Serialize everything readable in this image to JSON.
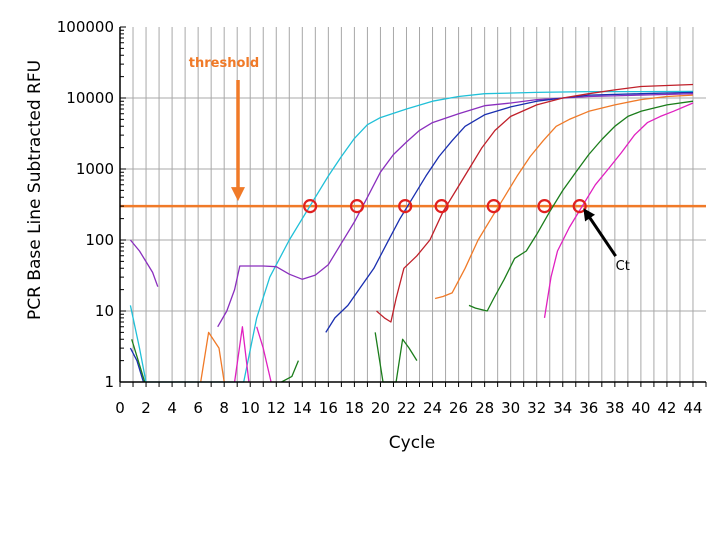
{
  "chart_data": {
    "type": "line",
    "title": "",
    "xlabel": "Cycle",
    "ylabel": "PCR Base Line Subtracted RFU",
    "xlim": [
      0,
      45
    ],
    "ylim": [
      1,
      100000
    ],
    "yscale": "log",
    "grid": true,
    "x_ticks": [
      "0",
      "2",
      "4",
      "6",
      "8",
      "10",
      "12",
      "14",
      "16",
      "18",
      "20",
      "22",
      "24",
      "26",
      "28",
      "30",
      "32",
      "34",
      "36",
      "38",
      "40",
      "42",
      "44"
    ],
    "y_ticks": [
      "1",
      "10",
      "100",
      "1000",
      "10000",
      "100000"
    ],
    "threshold": {
      "label": "threshold",
      "value": 300,
      "color": "#f07a28"
    },
    "ct_annotation": {
      "label": "Ct",
      "x": 35.3,
      "y": 300
    },
    "ct_markers": [
      {
        "x": 14.6,
        "y": 300
      },
      {
        "x": 18.2,
        "y": 300
      },
      {
        "x": 21.9,
        "y": 300
      },
      {
        "x": 24.7,
        "y": 300
      },
      {
        "x": 28.7,
        "y": 300
      },
      {
        "x": 32.6,
        "y": 300
      },
      {
        "x": 35.3,
        "y": 300
      }
    ],
    "series": [
      {
        "color": "#20c0d8",
        "points": [
          [
            0.8,
            12
          ],
          [
            1.5,
            3
          ],
          [
            2,
            1
          ],
          [
            9.5,
            1
          ],
          [
            10.5,
            8
          ],
          [
            11.5,
            30
          ],
          [
            13,
            100
          ],
          [
            14,
            200
          ],
          [
            15,
            400
          ],
          [
            16,
            800
          ],
          [
            17,
            1500
          ],
          [
            18,
            2700
          ],
          [
            19,
            4200
          ],
          [
            20,
            5300
          ],
          [
            22,
            7000
          ],
          [
            24,
            9000
          ],
          [
            26,
            10500
          ],
          [
            28,
            11500
          ],
          [
            32,
            12000
          ],
          [
            36,
            12300
          ],
          [
            40,
            12300
          ],
          [
            44,
            12400
          ]
        ]
      },
      {
        "color": "#8a2fbe",
        "points": [
          [
            7.5,
            6
          ],
          [
            8.2,
            10
          ],
          [
            8.8,
            20
          ],
          [
            9.2,
            43
          ],
          [
            10,
            43
          ],
          [
            11,
            43
          ],
          [
            12,
            42
          ],
          [
            13,
            33
          ],
          [
            14,
            28
          ],
          [
            15,
            32
          ],
          [
            16,
            45
          ],
          [
            17,
            90
          ],
          [
            18,
            180
          ],
          [
            19,
            400
          ],
          [
            20,
            900
          ],
          [
            21,
            1600
          ],
          [
            22,
            2400
          ],
          [
            23,
            3500
          ],
          [
            24,
            4500
          ],
          [
            26,
            6000
          ],
          [
            28,
            7800
          ],
          [
            30,
            8500
          ],
          [
            32,
            9500
          ],
          [
            36,
            10500
          ],
          [
            40,
            11000
          ],
          [
            44,
            11500
          ]
        ]
      },
      {
        "color": "#8a2fbe",
        "points": [
          [
            0.8,
            100
          ],
          [
            1.5,
            70
          ],
          [
            2.5,
            35
          ],
          [
            2.9,
            22
          ]
        ]
      },
      {
        "color": "#1a2fb0",
        "points": [
          [
            15.8,
            5
          ],
          [
            16.5,
            8
          ],
          [
            17.5,
            12
          ],
          [
            18.5,
            22
          ],
          [
            19.5,
            40
          ],
          [
            20.5,
            90
          ],
          [
            21.5,
            200
          ],
          [
            22.5,
            400
          ],
          [
            23.5,
            800
          ],
          [
            24.5,
            1500
          ],
          [
            25.5,
            2500
          ],
          [
            26.5,
            4000
          ],
          [
            28,
            5800
          ],
          [
            30,
            7500
          ],
          [
            32,
            9000
          ],
          [
            34,
            10000
          ],
          [
            36,
            11000
          ],
          [
            40,
            11500
          ],
          [
            44,
            12000
          ]
        ]
      },
      {
        "color": "#1a2fb0",
        "points": [
          [
            0.8,
            3
          ],
          [
            1.3,
            2
          ],
          [
            1.8,
            1
          ]
        ]
      },
      {
        "color": "#c0202a",
        "points": [
          [
            19.7,
            10
          ],
          [
            20.3,
            8
          ],
          [
            20.8,
            7
          ],
          [
            21.2,
            15
          ],
          [
            21.8,
            40
          ],
          [
            22.8,
            60
          ],
          [
            23.8,
            100
          ],
          [
            24.8,
            250
          ],
          [
            25.8,
            500
          ],
          [
            26.8,
            1000
          ],
          [
            27.8,
            2000
          ],
          [
            28.8,
            3500
          ],
          [
            30,
            5500
          ],
          [
            32,
            8000
          ],
          [
            34,
            10000
          ],
          [
            36,
            11500
          ],
          [
            38,
            13000
          ],
          [
            40,
            14500
          ],
          [
            44,
            15500
          ]
        ]
      },
      {
        "color": "#f07a28",
        "points": [
          [
            6.2,
            1
          ],
          [
            6.8,
            5
          ],
          [
            7.6,
            3
          ],
          [
            8,
            1
          ]
        ]
      },
      {
        "color": "#f07a28",
        "points": [
          [
            24.2,
            15
          ],
          [
            24.8,
            16
          ],
          [
            25.5,
            18
          ],
          [
            26.5,
            40
          ],
          [
            27.5,
            100
          ],
          [
            28.5,
            200
          ],
          [
            29.5,
            400
          ],
          [
            30.5,
            800
          ],
          [
            31.5,
            1500
          ],
          [
            32.5,
            2500
          ],
          [
            33.5,
            4000
          ],
          [
            34.5,
            5000
          ],
          [
            36,
            6500
          ],
          [
            38,
            8000
          ],
          [
            40,
            9500
          ],
          [
            42,
            10500
          ],
          [
            44,
            11000
          ]
        ]
      },
      {
        "color": "#1b7d1b",
        "points": [
          [
            0.9,
            4
          ],
          [
            1.4,
            2
          ],
          [
            1.9,
            1
          ]
        ]
      },
      {
        "color": "#1b7d1b",
        "points": [
          [
            12.4,
            1
          ],
          [
            13.2,
            1.2
          ],
          [
            13.7,
            2
          ]
        ]
      },
      {
        "color": "#1b7d1b",
        "points": [
          [
            19.6,
            5
          ],
          [
            20.2,
            1
          ],
          [
            21.2,
            1
          ],
          [
            21.7,
            4
          ],
          [
            22.2,
            3
          ],
          [
            22.8,
            2
          ]
        ]
      },
      {
        "color": "#1b7d1b",
        "points": [
          [
            26.8,
            12
          ],
          [
            27.3,
            11
          ],
          [
            28.2,
            10
          ],
          [
            28.7,
            15
          ],
          [
            29.5,
            28
          ],
          [
            30.3,
            55
          ],
          [
            31.2,
            70
          ],
          [
            32,
            120
          ],
          [
            33,
            250
          ],
          [
            34,
            500
          ],
          [
            35,
            900
          ],
          [
            36,
            1600
          ],
          [
            37,
            2600
          ],
          [
            38,
            4000
          ],
          [
            39,
            5500
          ],
          [
            40,
            6500
          ],
          [
            42,
            8000
          ],
          [
            44,
            9000
          ]
        ]
      },
      {
        "color": "#e020c0",
        "points": [
          [
            8.8,
            1
          ],
          [
            9.4,
            6
          ],
          [
            9.9,
            1
          ]
        ]
      },
      {
        "color": "#e020c0",
        "points": [
          [
            1.3,
            3
          ]
        ]
      },
      {
        "color": "#e020c0",
        "points": [
          [
            10.5,
            6
          ],
          [
            11,
            3
          ],
          [
            11.6,
            1
          ]
        ]
      },
      {
        "color": "#e020c0",
        "points": [
          [
            32.6,
            8
          ],
          [
            33.1,
            30
          ],
          [
            33.6,
            70
          ],
          [
            34.5,
            150
          ],
          [
            35.5,
            300
          ],
          [
            36.5,
            600
          ],
          [
            37.5,
            1000
          ],
          [
            38.5,
            1700
          ],
          [
            39.5,
            3000
          ],
          [
            40.5,
            4500
          ],
          [
            41.5,
            5500
          ],
          [
            42.5,
            6500
          ],
          [
            44,
            8500
          ]
        ]
      }
    ]
  }
}
